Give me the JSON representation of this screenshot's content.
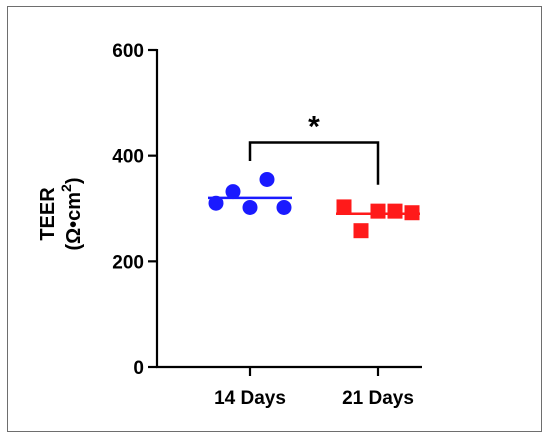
{
  "chart_data": {
    "type": "scatter",
    "ylabel_line1": "TEER",
    "ylabel_line2_prefix": "(Ω•cm",
    "ylabel_line2_sup": "2",
    "ylabel_line2_suffix": ")",
    "ylim": [
      0,
      600
    ],
    "yticks": [
      "0",
      "200",
      "400",
      "600"
    ],
    "categories": [
      "14 Days",
      "21 Days"
    ],
    "series": [
      {
        "category": "14 Days",
        "marker": "circle",
        "color": "#1a1aff",
        "values": [
          310,
          332,
          302,
          355,
          302
        ],
        "mean": 320
      },
      {
        "category": "21 Days",
        "marker": "square",
        "color": "#ff1a1a",
        "values": [
          303,
          258,
          295,
          295,
          292
        ],
        "mean": 290
      }
    ],
    "significance": {
      "from": "14 Days",
      "to": "21 Days",
      "label": "*",
      "bracket_value": 425,
      "drop_to": [
        390,
        345
      ]
    },
    "grid": false
  }
}
